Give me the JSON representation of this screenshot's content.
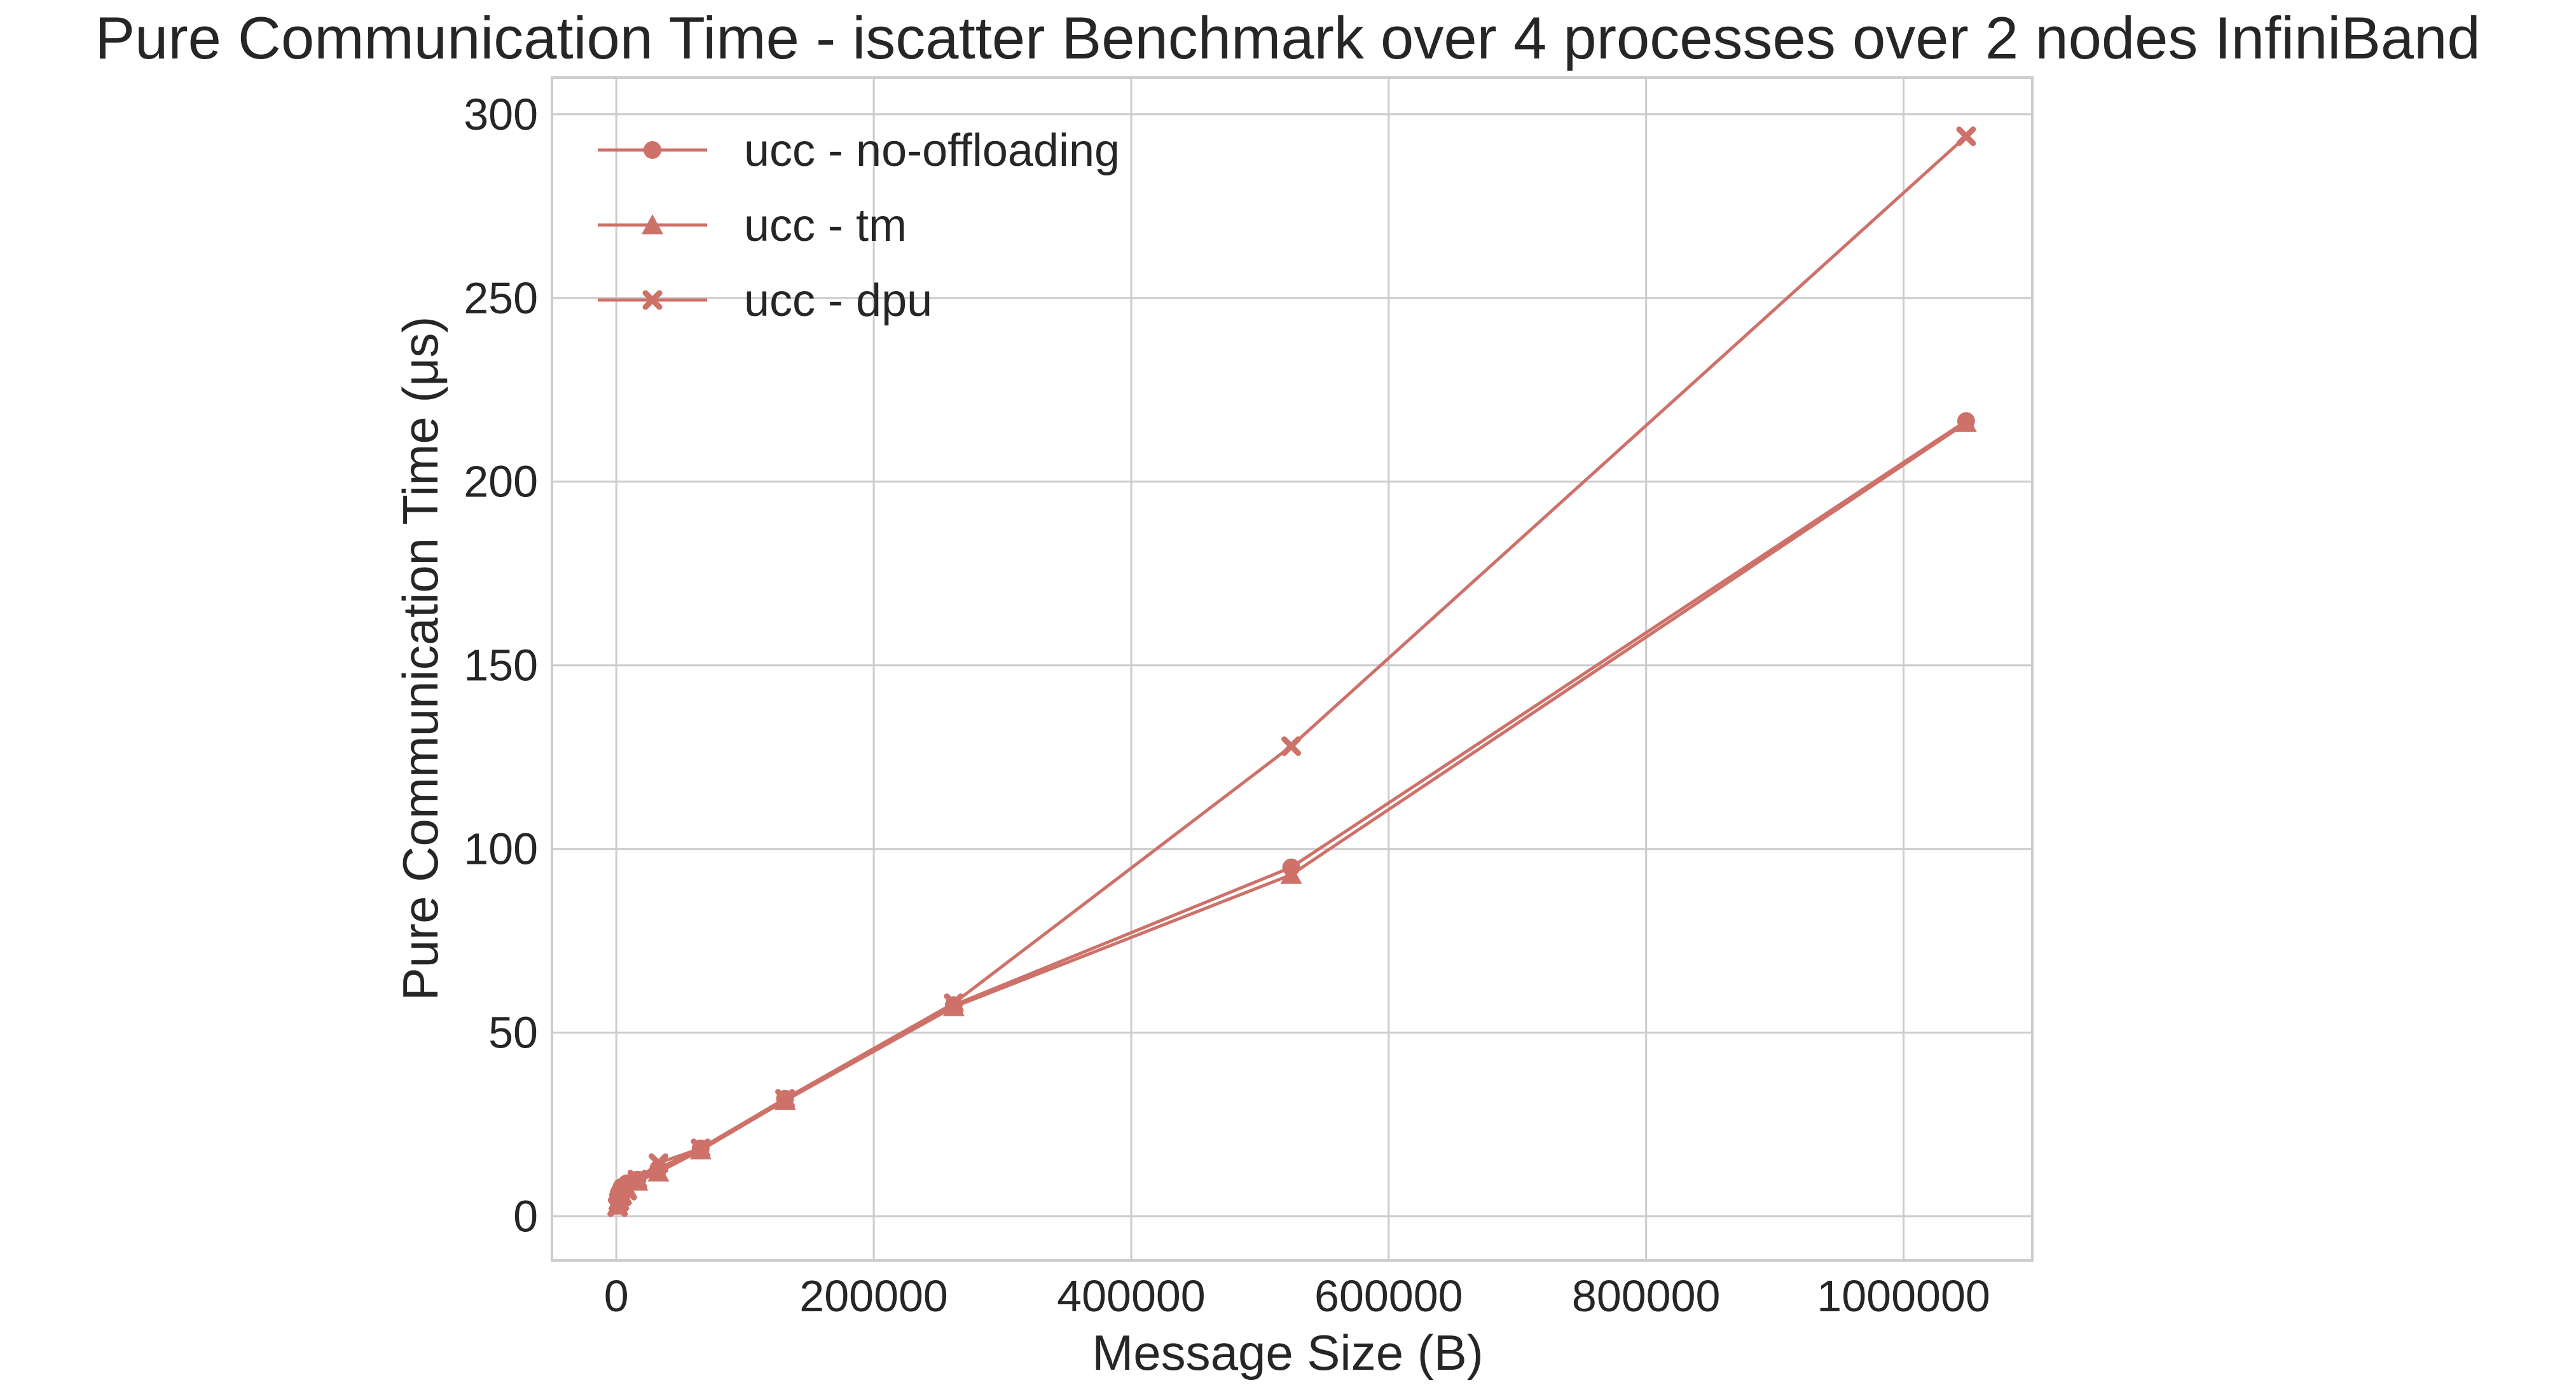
{
  "chart_data": {
    "type": "line",
    "title": "Pure Communication Time - iscatter Benchmark over 4 processes over 2 nodes InfiniBand",
    "xlabel": "Message Size (B)",
    "ylabel": "Pure Communication Time (μs)",
    "xlim": [
      -50000,
      1100000
    ],
    "ylim": [
      -12,
      310
    ],
    "xticks": [
      0,
      200000,
      400000,
      600000,
      800000,
      1000000
    ],
    "xtick_labels": [
      "0",
      "200000",
      "400000",
      "600000",
      "800000",
      "1000000"
    ],
    "yticks": [
      0,
      50,
      100,
      150,
      200,
      250,
      300
    ],
    "ytick_labels": [
      "0",
      "50",
      "100",
      "150",
      "200",
      "250",
      "300"
    ],
    "grid": true,
    "legend_position": "top-left",
    "series": [
      {
        "name": "ucc - no-offloading",
        "marker": "circle",
        "color": "#cd7169",
        "x": [
          1024,
          2048,
          4096,
          8192,
          16384,
          32768,
          65536,
          131072,
          262144,
          524288,
          1048576
        ],
        "y": [
          4.5,
          6.5,
          8.0,
          9.0,
          10.0,
          13.0,
          18.5,
          32.0,
          57.5,
          95.0,
          216.5
        ]
      },
      {
        "name": "ucc - tm",
        "marker": "triangle",
        "color": "#cd7169",
        "x": [
          1024,
          2048,
          4096,
          8192,
          16384,
          32768,
          65536,
          131072,
          262144,
          524288,
          1048576
        ],
        "y": [
          3.0,
          4.5,
          6.0,
          7.5,
          9.5,
          12.0,
          18.0,
          31.5,
          57.0,
          93.0,
          216.0
        ]
      },
      {
        "name": "ucc - dpu",
        "marker": "x",
        "color": "#cd7169",
        "x": [
          1024,
          2048,
          4096,
          8192,
          16384,
          32768,
          65536,
          131072,
          262144,
          524288,
          1048576
        ],
        "y": [
          2.5,
          4.0,
          5.5,
          7.0,
          10.0,
          14.5,
          18.5,
          32.0,
          58.0,
          128.0,
          294.0
        ]
      }
    ]
  }
}
